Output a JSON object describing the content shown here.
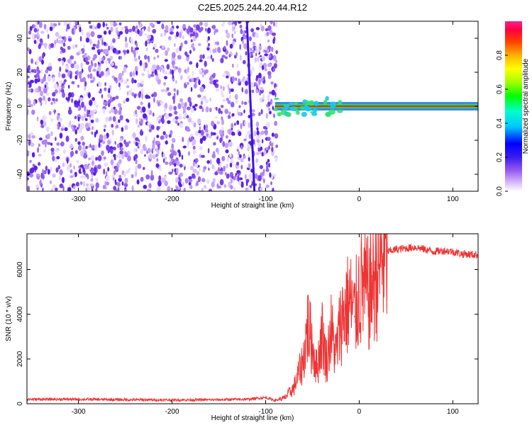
{
  "title": "C2E5.2025.244.20.44.R12",
  "chart_data": [
    {
      "type": "heatmap",
      "xlabel": "Height of straight line (km)",
      "ylabel": "Frequency (Hz)",
      "xlim": [
        -355,
        127
      ],
      "ylim": [
        -50,
        50
      ],
      "xticks": [
        -300,
        -200,
        -100,
        0,
        100
      ],
      "yticks": [
        -40,
        -20,
        0,
        20,
        40
      ],
      "colorbar": {
        "label": "Normalized spectral amplitude",
        "range": [
          0,
          1
        ],
        "ticks": [
          "0.0",
          "0.2",
          "0.4",
          "0.6",
          "0.8"
        ]
      },
      "noise_region_x": [
        -355,
        -88
      ],
      "carrier_line": {
        "x_start": -90,
        "x_end": 127,
        "frequency": 0
      },
      "sweep_line": {
        "x": [
          -120,
          -112
        ],
        "y": [
          50,
          -50
        ]
      },
      "grid": false
    },
    {
      "type": "line",
      "xlabel": "Height of straight line (km)",
      "ylabel": "SNR (10 * v/v)",
      "xlim": [
        -355,
        127
      ],
      "ylim": [
        0,
        7600
      ],
      "xticks": [
        -300,
        -200,
        -100,
        0,
        100
      ],
      "yticks": [
        0,
        2000,
        4000,
        6000
      ],
      "series": [
        {
          "color": "#ee3333",
          "x": [
            -355,
            -300,
            -250,
            -200,
            -150,
            -120,
            -100,
            -90,
            -80,
            -70,
            -60,
            -55,
            -50,
            -45,
            -40,
            -35,
            -30,
            -25,
            -20,
            -15,
            -10,
            -5,
            0,
            5,
            10,
            15,
            20,
            25,
            30,
            40,
            50,
            60,
            70,
            80,
            90,
            100,
            110,
            127
          ],
          "y": [
            200,
            200,
            180,
            170,
            180,
            200,
            280,
            150,
            250,
            700,
            1900,
            3500,
            2600,
            1500,
            3200,
            1900,
            3300,
            2200,
            3600,
            4200,
            4600,
            3900,
            5000,
            5300,
            4800,
            5500,
            6200,
            6600,
            6800,
            6900,
            6950,
            7000,
            6900,
            6800,
            6850,
            6800,
            6700,
            6650
          ]
        }
      ],
      "grid": false
    }
  ]
}
